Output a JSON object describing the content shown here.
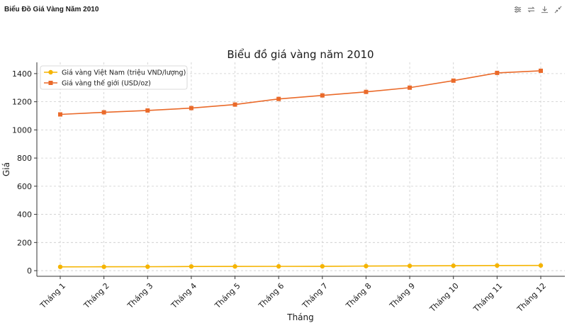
{
  "window": {
    "title": "Biểu Đồ Giá Vàng Năm 2010",
    "toolbar": [
      {
        "name": "chart-settings-icon",
        "icon": "sliders-icon"
      },
      {
        "name": "toggle-view-icon",
        "icon": "swap-icon"
      },
      {
        "name": "download-icon",
        "icon": "download-icon"
      },
      {
        "name": "collapse-icon",
        "icon": "collapse-icon"
      }
    ]
  },
  "chart_data": {
    "type": "line",
    "title": "Biểu đồ giá vàng năm 2010",
    "xlabel": "Tháng",
    "ylabel": "Giá",
    "categories": [
      "Tháng 1",
      "Tháng 2",
      "Tháng 3",
      "Tháng 4",
      "Tháng 5",
      "Tháng 6",
      "Tháng 7",
      "Tháng 8",
      "Tháng 9",
      "Tháng 10",
      "Tháng 11",
      "Tháng 12"
    ],
    "ylim": [
      -40,
      1480
    ],
    "yticks": [
      0,
      200,
      400,
      600,
      800,
      1000,
      1200,
      1400
    ],
    "grid": true,
    "legend_position": "top-left",
    "series": [
      {
        "name": "Giá vàng Việt Nam (triệu VND/lượng)",
        "color": "#f5b400",
        "marker": "circle",
        "values": [
          27,
          27.5,
          28,
          29.5,
          30,
          30.5,
          31,
          32.5,
          34,
          35,
          36.5,
          37
        ]
      },
      {
        "name": "Giá vàng thế giới (USD/oz)",
        "color": "#ea6a2a",
        "marker": "square",
        "values": [
          1110,
          1125,
          1138,
          1155,
          1180,
          1220,
          1245,
          1270,
          1300,
          1350,
          1405,
          1420
        ]
      }
    ]
  }
}
